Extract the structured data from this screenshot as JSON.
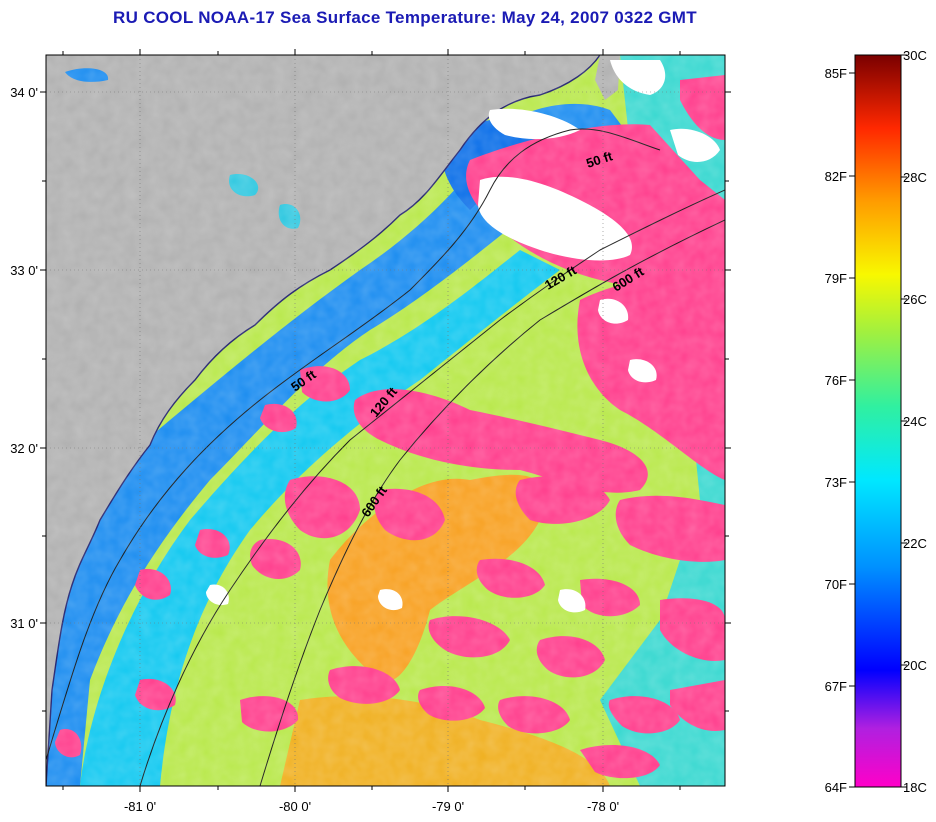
{
  "title": "RU COOL  NOAA-17  Sea Surface Temperature:  May 24, 2007 0322 GMT",
  "map": {
    "lat_labels": [
      "34 0'",
      "33 0'",
      "32 0'",
      "31 0'"
    ],
    "lon_labels": [
      "-81 0'",
      "-80 0'",
      "-79 0'",
      "-78 0'"
    ],
    "isobath_labels": [
      "50 ft",
      "120 ft",
      "600 ft",
      "50 ft",
      "120 ft",
      "600 ft"
    ],
    "colors": {
      "land": "#b0b0b0",
      "cloud": "#ff3d8c",
      "no_data": "#ffffff"
    }
  },
  "colorbar": {
    "fahrenheit_labels": [
      "85F",
      "82F",
      "79F",
      "76F",
      "73F",
      "70F",
      "67F",
      "64F"
    ],
    "celsius_labels": [
      "30C",
      "28C",
      "26C",
      "24C",
      "22C",
      "20C",
      "18C"
    ]
  }
}
